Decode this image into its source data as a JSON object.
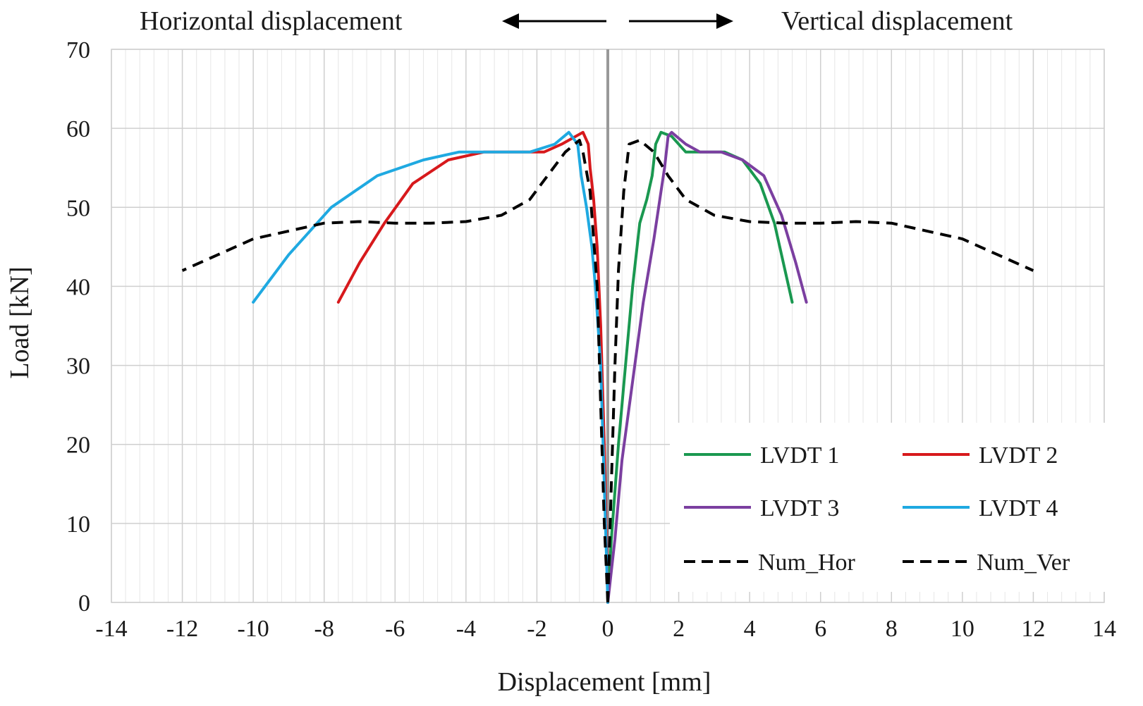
{
  "chart_data": {
    "type": "line",
    "title": "",
    "xlabel": "Displacement [mm]",
    "ylabel": "Load  [kN]",
    "xlim": [
      -14,
      14
    ],
    "ylim": [
      0,
      70
    ],
    "xticks": [
      "-14",
      "-12",
      "-10",
      "-8",
      "-6",
      "-4",
      "-2",
      "0",
      "2",
      "4",
      "6",
      "8",
      "10",
      "12",
      "14"
    ],
    "yticks": [
      "0",
      "10",
      "20",
      "30",
      "40",
      "50",
      "60",
      "70"
    ],
    "minor_x_step": 0.4,
    "grid": true,
    "legend_position": "bottom-right",
    "annotations": {
      "left": "Horizontal displacement",
      "right": "Vertical displacement"
    },
    "colors": {
      "lvdt1": "#1a9850",
      "lvdt2": "#d7191c",
      "lvdt3": "#7b3fa0",
      "lvdt4": "#1fa9e1",
      "numerical": "#000000",
      "zero_line": "#999999"
    },
    "series": [
      {
        "name": "LVDT 1",
        "color": "#1a9850",
        "dash": false,
        "points": [
          [
            0,
            0
          ],
          [
            0.1,
            8
          ],
          [
            0.3,
            20
          ],
          [
            0.5,
            30
          ],
          [
            0.7,
            40
          ],
          [
            0.9,
            48
          ],
          [
            1.1,
            51
          ],
          [
            1.25,
            54
          ],
          [
            1.35,
            58
          ],
          [
            1.5,
            59.5
          ],
          [
            1.8,
            59
          ],
          [
            2.2,
            57
          ],
          [
            2.7,
            57
          ],
          [
            3.3,
            57
          ],
          [
            3.8,
            56
          ],
          [
            4.3,
            53
          ],
          [
            4.7,
            48
          ],
          [
            5,
            42
          ],
          [
            5.2,
            38
          ]
        ]
      },
      {
        "name": "LVDT 2",
        "color": "#d7191c",
        "dash": false,
        "points": [
          [
            0,
            0
          ],
          [
            -0.1,
            20
          ],
          [
            -0.2,
            35
          ],
          [
            -0.3,
            45
          ],
          [
            -0.4,
            51
          ],
          [
            -0.5,
            55
          ],
          [
            -0.55,
            58
          ],
          [
            -0.7,
            59.5
          ],
          [
            -0.9,
            59
          ],
          [
            -1.3,
            58
          ],
          [
            -1.8,
            57
          ],
          [
            -2.5,
            57
          ],
          [
            -3.5,
            57
          ],
          [
            -4.5,
            56
          ],
          [
            -5.5,
            53
          ],
          [
            -6.3,
            48
          ],
          [
            -7,
            43
          ],
          [
            -7.6,
            38
          ]
        ]
      },
      {
        "name": "LVDT 3",
        "color": "#7b3fa0",
        "dash": false,
        "points": [
          [
            0,
            0
          ],
          [
            0.2,
            8
          ],
          [
            0.4,
            18
          ],
          [
            0.7,
            28
          ],
          [
            1,
            38
          ],
          [
            1.3,
            46
          ],
          [
            1.5,
            52
          ],
          [
            1.6,
            55
          ],
          [
            1.7,
            59
          ],
          [
            1.8,
            59.5
          ],
          [
            2.2,
            58
          ],
          [
            2.6,
            57
          ],
          [
            3.2,
            57
          ],
          [
            3.8,
            56
          ],
          [
            4.4,
            54
          ],
          [
            4.9,
            49
          ],
          [
            5.3,
            43
          ],
          [
            5.6,
            38
          ]
        ]
      },
      {
        "name": "LVDT 4",
        "color": "#1fa9e1",
        "dash": false,
        "points": [
          [
            0,
            0
          ],
          [
            -0.1,
            15
          ],
          [
            -0.2,
            30
          ],
          [
            -0.35,
            40
          ],
          [
            -0.45,
            45
          ],
          [
            -0.6,
            50
          ],
          [
            -0.75,
            54
          ],
          [
            -0.85,
            58
          ],
          [
            -1.1,
            59.5
          ],
          [
            -1.5,
            58
          ],
          [
            -2.2,
            57
          ],
          [
            -3.2,
            57
          ],
          [
            -4.2,
            57
          ],
          [
            -5.2,
            56
          ],
          [
            -6.5,
            54
          ],
          [
            -7.8,
            50
          ],
          [
            -9,
            44
          ],
          [
            -10,
            38
          ]
        ]
      },
      {
        "name": "Num_Hor",
        "color": "#000000",
        "dash": true,
        "points": [
          [
            0,
            0
          ],
          [
            -0.1,
            10
          ],
          [
            -0.2,
            25
          ],
          [
            -0.3,
            40
          ],
          [
            -0.5,
            52
          ],
          [
            -0.7,
            57
          ],
          [
            -0.8,
            58.5
          ],
          [
            -1.2,
            57
          ],
          [
            -1.7,
            54
          ],
          [
            -2.2,
            51
          ],
          [
            -3,
            49
          ],
          [
            -4,
            48.2
          ],
          [
            -5,
            48
          ],
          [
            -6,
            48
          ],
          [
            -7,
            48.2
          ],
          [
            -8,
            48
          ],
          [
            -9,
            47
          ],
          [
            -10,
            46
          ],
          [
            -11,
            44
          ],
          [
            -12,
            42
          ]
        ]
      },
      {
        "name": "Num_Ver",
        "color": "#000000",
        "dash": true,
        "points": [
          [
            0,
            0
          ],
          [
            0.1,
            15
          ],
          [
            0.2,
            30
          ],
          [
            0.3,
            42
          ],
          [
            0.45,
            52
          ],
          [
            0.6,
            58
          ],
          [
            0.9,
            58.5
          ],
          [
            1.3,
            57
          ],
          [
            1.7,
            54
          ],
          [
            2.2,
            51
          ],
          [
            3,
            49
          ],
          [
            4,
            48.2
          ],
          [
            5,
            48
          ],
          [
            6,
            48
          ],
          [
            7,
            48.2
          ],
          [
            8,
            48
          ],
          [
            9,
            47
          ],
          [
            10,
            46
          ],
          [
            11,
            44
          ],
          [
            12,
            42
          ]
        ]
      }
    ]
  }
}
